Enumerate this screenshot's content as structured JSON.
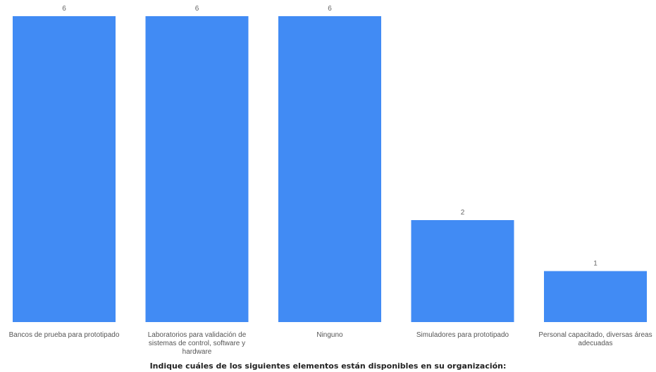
{
  "chart_data": {
    "type": "bar",
    "categories": [
      "Bancos de prueba para prototipado",
      "Laboratorios para validación de sistemas de control, software y hardware",
      "Ninguno",
      "Simuladores para prototipado",
      "Personal capacitado, diversas áreas adecuadas"
    ],
    "values": [
      6,
      6,
      6,
      2,
      1
    ],
    "data_labels": [
      "6",
      "6",
      "6",
      "2",
      "1"
    ],
    "title": "",
    "xlabel": "Indique cuáles de los siguientes elementos están disponibles en su organización:",
    "ylabel": "",
    "ylim": [
      0,
      6
    ],
    "grid": false,
    "legend": "none",
    "bar_color": "#418BF4"
  }
}
